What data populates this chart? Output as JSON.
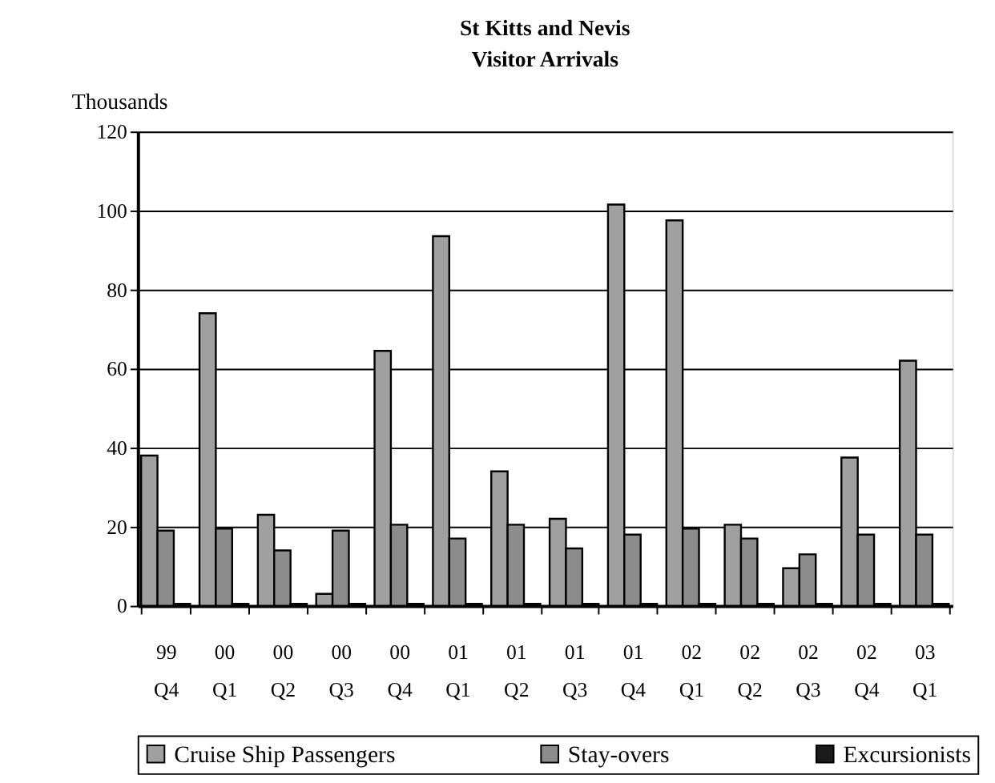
{
  "chart_data": {
    "type": "bar",
    "title": "St Kitts and Nevis",
    "subtitle": "Visitor Arrivals",
    "ylabel": "Thousands",
    "categories": [
      "99 Q4",
      "00 Q1",
      "00 Q2",
      "00 Q3",
      "00 Q4",
      "01 Q1",
      "01 Q2",
      "01 Q3",
      "01 Q4",
      "02 Q1",
      "02 Q2",
      "02 Q3",
      "02 Q4",
      "03 Q1"
    ],
    "series": [
      {
        "name": "Cruise Ship Passengers",
        "color": "#a0a0a0",
        "values": [
          38,
          74,
          23,
          3,
          64.5,
          93.5,
          34,
          22,
          101.5,
          97.5,
          20.5,
          9.5,
          37.5,
          62
        ]
      },
      {
        "name": "Stay-overs",
        "color": "#8c8c8c",
        "values": [
          19,
          19.5,
          14,
          19,
          20.5,
          17,
          20.5,
          14.5,
          18,
          19.5,
          17,
          13,
          18,
          18
        ]
      },
      {
        "name": "Excursionists",
        "color": "#1a1a1a",
        "values": [
          0.5,
          0.5,
          0.5,
          0.5,
          0.5,
          0.5,
          0.5,
          0.5,
          0.5,
          0.5,
          0.5,
          0.5,
          0.5,
          0.5
        ]
      }
    ],
    "ylim": [
      0,
      120
    ],
    "yticks": [
      0,
      20,
      40,
      60,
      80,
      100,
      120
    ],
    "grid": "y",
    "legend": "bottom"
  }
}
